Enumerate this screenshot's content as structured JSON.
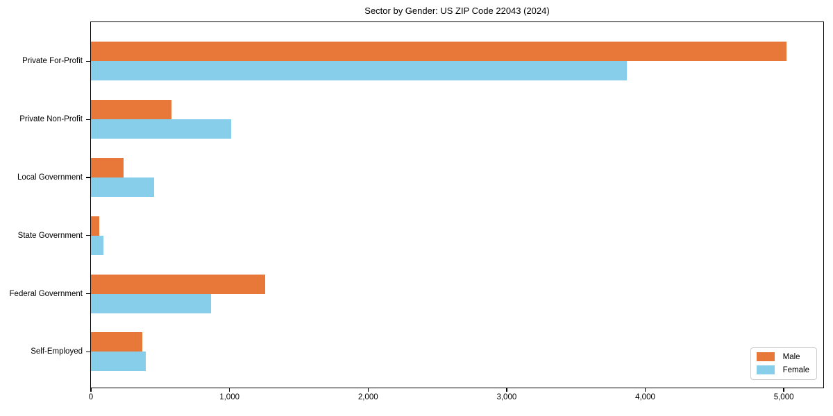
{
  "title": "Sector by Gender: US ZIP Code 22043 (2024)",
  "chart_data": {
    "type": "bar",
    "orientation": "horizontal",
    "title": "Sector by Gender: US ZIP Code 22043 (2024)",
    "categories": [
      "Private For-Profit",
      "Private Non-Profit",
      "Local Government",
      "State Government",
      "Federal Government",
      "Self-Employed"
    ],
    "series": [
      {
        "name": "Male",
        "color": "#E8773A",
        "values": [
          5020,
          580,
          235,
          60,
          1255,
          370
        ]
      },
      {
        "name": "Female",
        "color": "#87CEEB",
        "values": [
          3865,
          1010,
          455,
          90,
          865,
          395
        ]
      }
    ],
    "xlabel": "",
    "ylabel": "",
    "xlim": [
      0,
      5285
    ],
    "xticks": [
      0,
      1000,
      2000,
      3000,
      4000,
      5000
    ],
    "xtick_labels": [
      "0",
      "1,000",
      "2,000",
      "3,000",
      "4,000",
      "5,000"
    ],
    "grid": false,
    "background": "#ffffff",
    "legend_position": "lower right",
    "legend_labels": [
      "Male",
      "Female"
    ]
  }
}
